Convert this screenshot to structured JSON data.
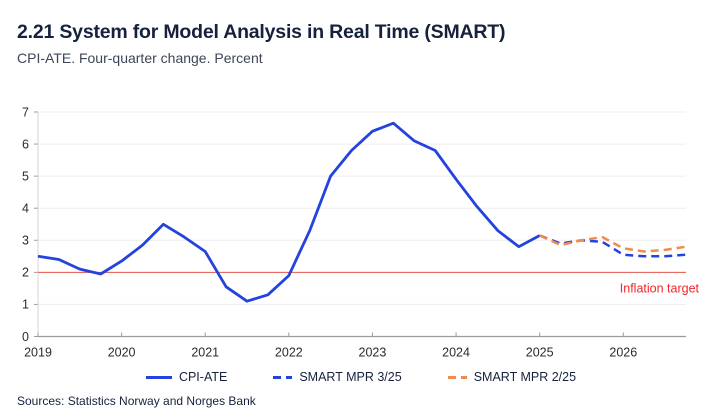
{
  "header": {
    "title": "2.21 System for Model Analysis in Real Time (SMART)",
    "subtitle": "CPI-ATE. Four-quarter change. Percent"
  },
  "footer": {
    "sources": "Sources: Statistics Norway and Norges Bank"
  },
  "colors": {
    "navy_text": "#16213c",
    "subtitle_text": "#3d4557",
    "axis_text": "#2b2b2b",
    "axis_line": "#9b9b9b",
    "grid_line": "#ededed",
    "left_border": "#d6d6d6",
    "line_blue": "#2442dd",
    "line_orange": "#f08c4a",
    "target_line": "#e2574d",
    "target_text": "#f1262b"
  },
  "chart_data": {
    "type": "line",
    "title": "2.21 System for Model Analysis in Real Time (SMART)",
    "subtitle": "CPI-ATE. Four-quarter change. Percent",
    "xlabel": "",
    "ylabel": "",
    "x_unit": "quarter",
    "x_tick_labels": [
      "2019",
      "2020",
      "2021",
      "2022",
      "2023",
      "2024",
      "2025",
      "2026"
    ],
    "x_range_quarters": 31,
    "ylim": [
      0,
      7
    ],
    "y_ticks": [
      0,
      1,
      2,
      3,
      4,
      5,
      6,
      7
    ],
    "grid": true,
    "legend_position": "bottom",
    "target_line": {
      "value": 2,
      "label": "Inflation target"
    },
    "series": [
      {
        "name": "CPI-ATE",
        "style": "solid",
        "color_key": "line_blue",
        "start_index": 0,
        "values": [
          2.5,
          2.4,
          2.1,
          1.95,
          2.35,
          2.85,
          3.5,
          3.1,
          2.65,
          1.55,
          1.1,
          1.3,
          1.9,
          3.3,
          5.0,
          5.8,
          6.4,
          6.65,
          6.1,
          5.8,
          4.9,
          4.05,
          3.3,
          2.8,
          3.15
        ]
      },
      {
        "name": "SMART MPR 3/25",
        "style": "dashed",
        "color_key": "line_blue",
        "start_index": 24,
        "values": [
          3.15,
          2.9,
          3.0,
          2.95,
          2.55,
          2.5,
          2.5,
          2.55
        ]
      },
      {
        "name": "SMART MPR 2/25",
        "style": "dashed",
        "color_key": "line_orange",
        "start_index": 24,
        "values": [
          3.15,
          2.85,
          3.0,
          3.1,
          2.75,
          2.65,
          2.7,
          2.8
        ]
      }
    ]
  }
}
